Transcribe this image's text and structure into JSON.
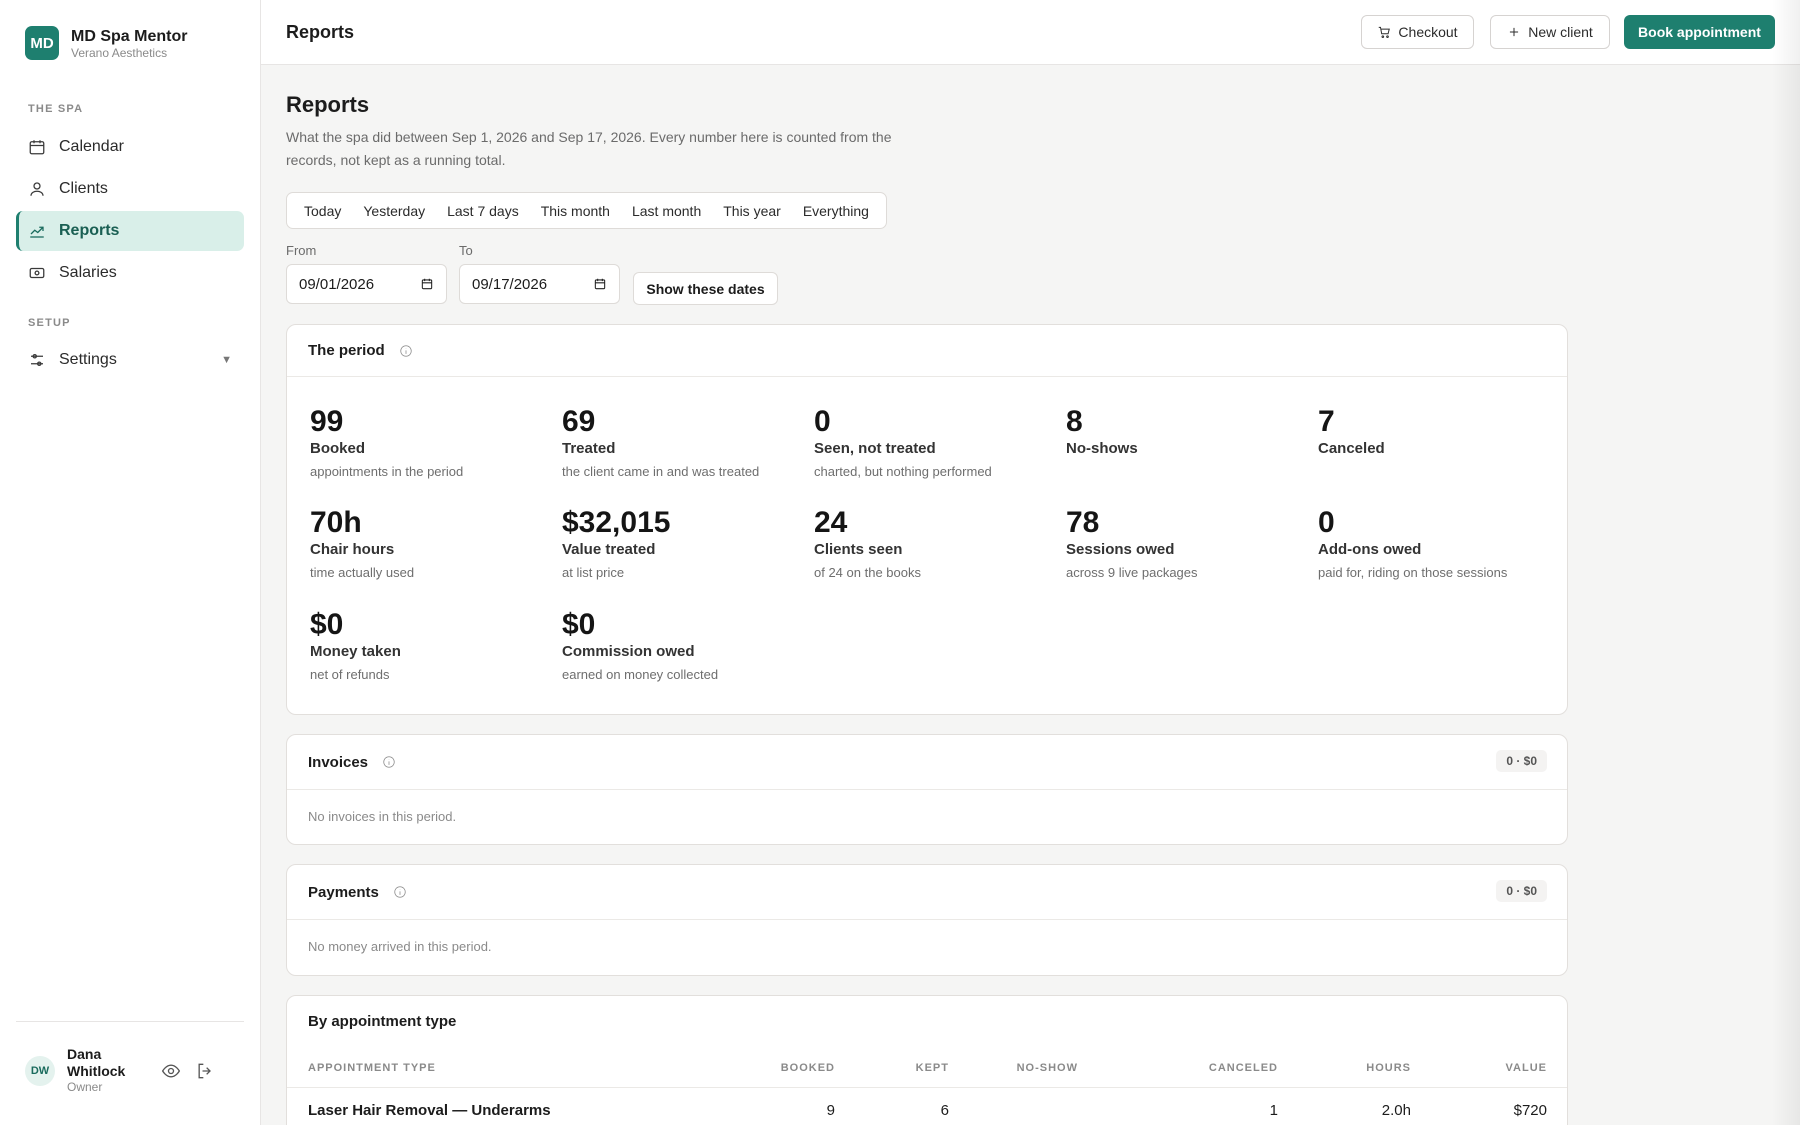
{
  "brand": {
    "logo": "MD",
    "name": "MD Spa Mentor",
    "sub": "Verano Aesthetics"
  },
  "sidebar": {
    "sections": [
      {
        "label": "THE SPA"
      },
      {
        "label": "SETUP"
      }
    ],
    "items": [
      {
        "label": "Calendar",
        "icon": "calendar-icon"
      },
      {
        "label": "Clients",
        "icon": "user-icon"
      },
      {
        "label": "Reports",
        "icon": "chart-icon",
        "active": true
      },
      {
        "label": "Salaries",
        "icon": "cash-icon"
      },
      {
        "label": "Settings",
        "icon": "sliders-icon"
      }
    ],
    "settings_caret": "▼"
  },
  "user": {
    "initials": "DW",
    "name": "Dana Whitlock",
    "role": "Owner"
  },
  "topbar": {
    "title": "Reports",
    "checkout": "Checkout",
    "new_client": "New client",
    "book": "Book appointment"
  },
  "page": {
    "title": "Reports",
    "description": "What the spa did between Sep 1, 2026 and Sep 17, 2026. Every number here is counted from the records, not kept as a running total.",
    "ranges": [
      "Today",
      "Yesterday",
      "Last 7 days",
      "This month",
      "Last month",
      "This year",
      "Everything"
    ],
    "from_label": "From",
    "to_label": "To",
    "from_value": "09/01/2026",
    "to_value": "09/17/2026",
    "show_button": "Show these dates"
  },
  "period": {
    "title": "The period",
    "metrics": [
      {
        "value": "99",
        "label": "Booked",
        "sub": "appointments in the period"
      },
      {
        "value": "69",
        "label": "Treated",
        "sub": "the client came in and was treated"
      },
      {
        "value": "0",
        "label": "Seen, not treated",
        "sub": "charted, but nothing performed"
      },
      {
        "value": "8",
        "label": "No-shows",
        "sub": ""
      },
      {
        "value": "7",
        "label": "Canceled",
        "sub": ""
      },
      {
        "value": "70h",
        "label": "Chair hours",
        "sub": "time actually used"
      },
      {
        "value": "$32,015",
        "label": "Value treated",
        "sub": "at list price"
      },
      {
        "value": "24",
        "label": "Clients seen",
        "sub": "of 24 on the books"
      },
      {
        "value": "78",
        "label": "Sessions owed",
        "sub": "across 9 live packages"
      },
      {
        "value": "0",
        "label": "Add-ons owed",
        "sub": "paid for, riding on those sessions"
      },
      {
        "value": "$0",
        "label": "Money taken",
        "sub": "net of refunds"
      },
      {
        "value": "$0",
        "label": "Commission owed",
        "sub": "earned on money collected"
      }
    ]
  },
  "invoices": {
    "title": "Invoices",
    "pill": "0 · $0",
    "empty": "No invoices in this period."
  },
  "payments": {
    "title": "Payments",
    "pill": "0 · $0",
    "empty": "No money arrived in this period."
  },
  "by_type": {
    "title": "By appointment type",
    "columns": [
      "APPOINTMENT TYPE",
      "BOOKED",
      "KEPT",
      "NO-SHOW",
      "CANCELED",
      "HOURS",
      "VALUE"
    ],
    "rows": [
      {
        "type": "Laser Hair Removal — Underarms",
        "booked": "9",
        "kept": "6",
        "no_show": "",
        "canceled": "1",
        "hours": "2.0h",
        "value": "$720"
      }
    ]
  }
}
